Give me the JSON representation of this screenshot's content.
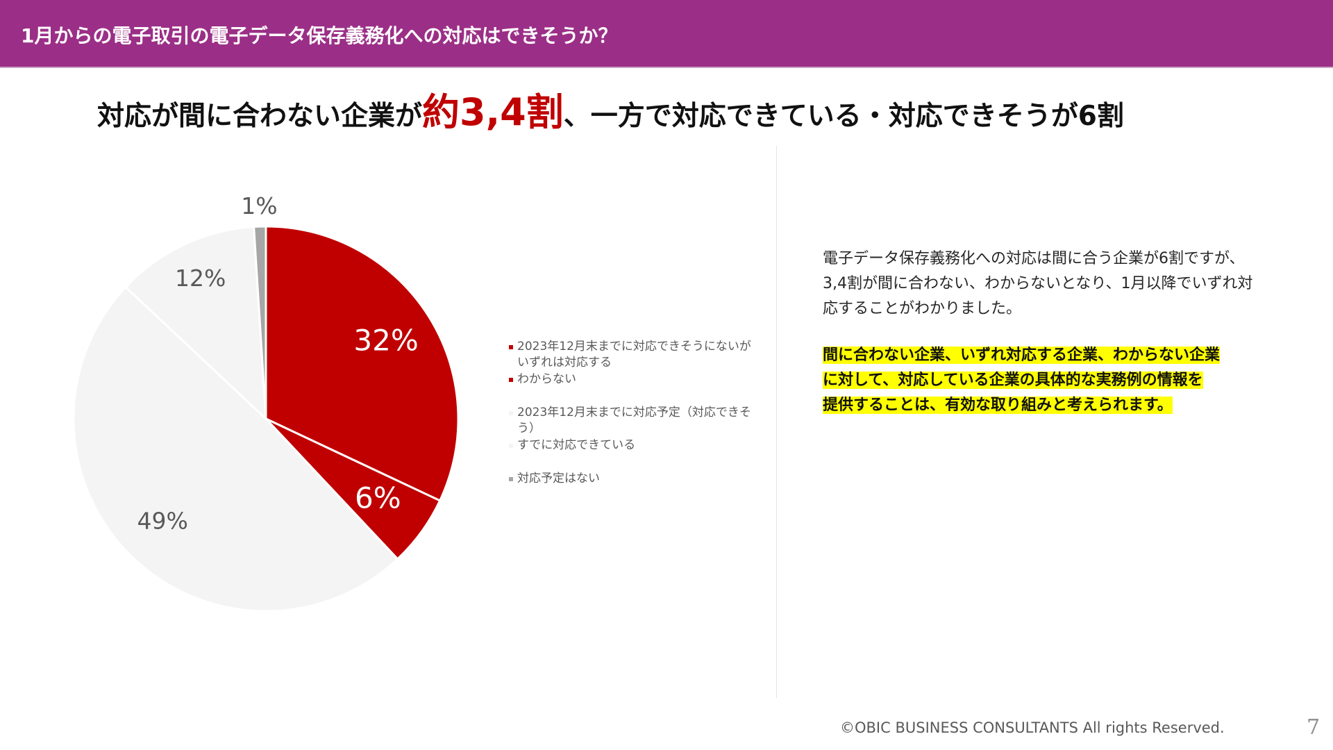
{
  "header": {
    "title": "1月からの電子取引の電子データ保存義務化への対応はできそうか？"
  },
  "headline": {
    "before": "対応が間に合わない企業が",
    "highlight": "約3,4割",
    "after": "、一方で対応できている・対応できそうが6割"
  },
  "chart_data": {
    "type": "pie",
    "title": "",
    "slices": [
      {
        "label": "2023年12月末までに対応できそうにないがいずれは対応する",
        "value": 32,
        "display": "32%",
        "color": "#c00000"
      },
      {
        "label": "わからない",
        "value": 6,
        "display": "6%",
        "color": "#c00000"
      },
      {
        "label": "2023年12月末までに対応予定（対応できそう）",
        "value": 49,
        "display": "49%",
        "color": "#f4f4f4"
      },
      {
        "label": "すでに対応できている",
        "value": 12,
        "display": "12%",
        "color": "#f4f4f4"
      },
      {
        "label": "対応予定はない",
        "value": 1,
        "display": "1%",
        "color": "#a6a6a6"
      }
    ],
    "legend_placement": "right",
    "label_colors": {
      "on_dark": "#ffffff",
      "on_light": "#595959"
    }
  },
  "legend": {
    "items": [
      {
        "text": "2023年12月末までに対応できそうにないがいずれは対応する",
        "color": "#c00000"
      },
      {
        "text": "わからない",
        "color": "#c00000"
      },
      {
        "text": "2023年12月末までに対応予定（対応できそう）",
        "color": "#f4f4f4"
      },
      {
        "text": "すでに対応できている",
        "color": "#f4f4f4"
      },
      {
        "text": "対応予定はない",
        "color": "#a6a6a6"
      }
    ]
  },
  "body": {
    "paragraph": "電子データ保存義務化への対応は間に合う企業が6割ですが、3,4割が間に合わない、わからないとなり、1月以降でいずれ対応することがわかりました。",
    "highlight_lines": [
      "間に合わない企業、いずれ対応する企業、わからない企業",
      "に対して、対応している企業の具体的な実務例の情報を",
      "提供することは、有効な取り組みと考えられます。"
    ]
  },
  "footer": {
    "copyright": "©OBIC BUSINESS CONSULTANTS All rights Reserved.",
    "page_number": "7"
  }
}
